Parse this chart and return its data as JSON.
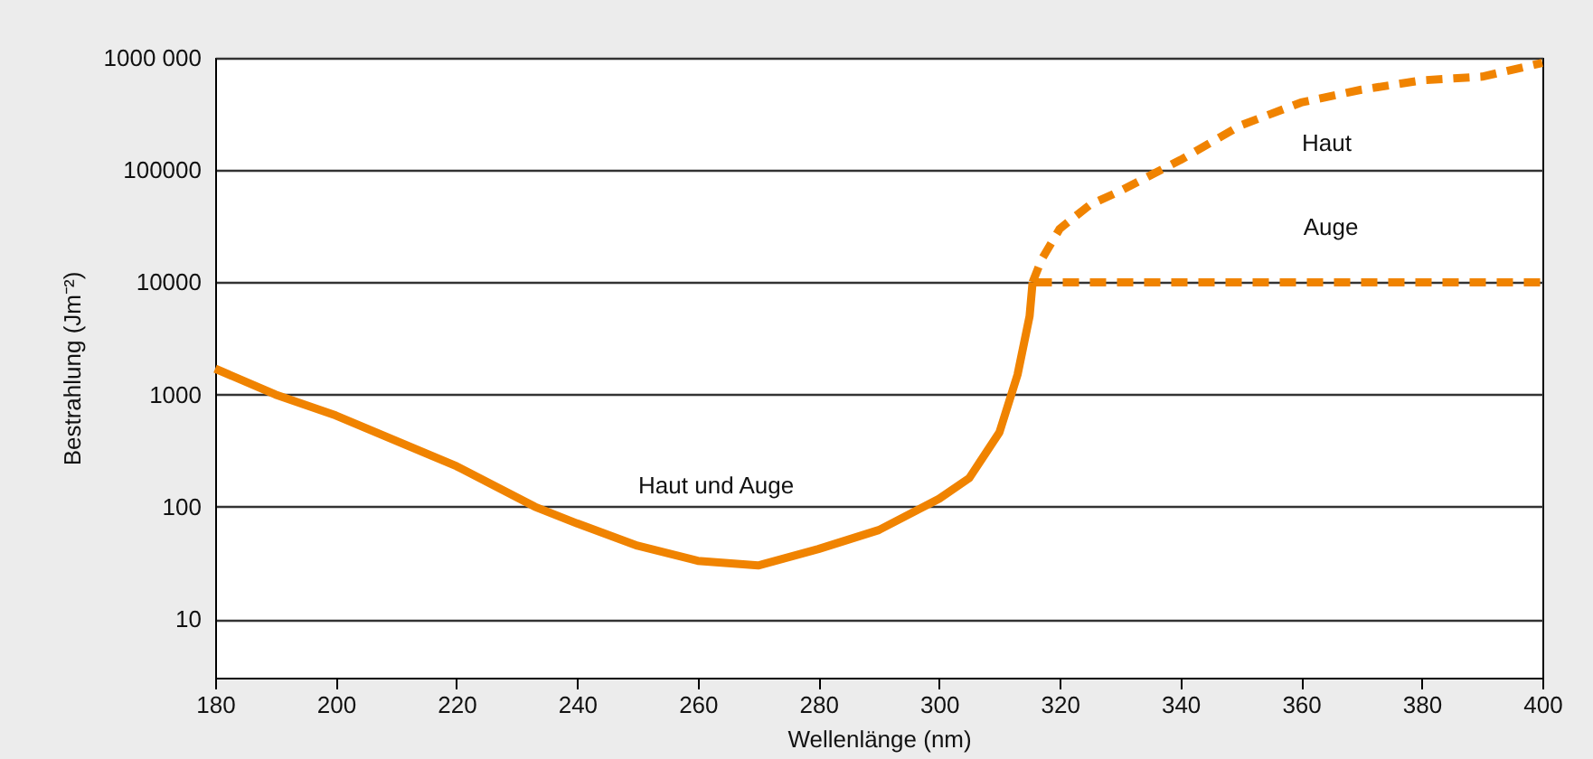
{
  "chart_data": {
    "type": "line",
    "xlabel": "Wellenlänge (nm)",
    "ylabel": "Bestrahlung (Jm⁻²)",
    "log": "y",
    "grid": "y",
    "xlim": [
      180,
      400
    ],
    "xticks": [
      180,
      200,
      220,
      240,
      260,
      280,
      300,
      320,
      340,
      360,
      380,
      400
    ],
    "ylim": [
      3,
      1000000
    ],
    "yticks": [
      10,
      100,
      1000,
      10000,
      100000,
      {
        "value": 1000000,
        "label": "1000 000"
      }
    ],
    "series": [
      {
        "name": "Haut und Auge",
        "color": "#f08300",
        "line_style": "solid",
        "x": [
          180,
          190,
          200,
          220,
          233,
          240,
          250,
          260,
          270,
          280,
          290,
          300,
          305,
          310,
          313,
          315,
          315.5
        ],
        "values": [
          1700,
          1000,
          650,
          230,
          100,
          71,
          45,
          33,
          30,
          42,
          62,
          118,
          180,
          460,
          1500,
          5000,
          10000
        ]
      },
      {
        "name": "Haut",
        "color": "#f08300",
        "line_style": "dashed",
        "x": [
          315.5,
          317,
          320,
          325,
          330,
          340,
          350,
          360,
          370,
          380,
          390,
          400
        ],
        "values": [
          10000,
          16000,
          30000,
          49000,
          65000,
          123000,
          250000,
          400000,
          520000,
          630000,
          680000,
          900000
        ]
      },
      {
        "name": "Auge",
        "color": "#f08300",
        "line_style": "dashed",
        "x": [
          316,
          400
        ],
        "values": [
          10000,
          10000
        ]
      }
    ]
  }
}
